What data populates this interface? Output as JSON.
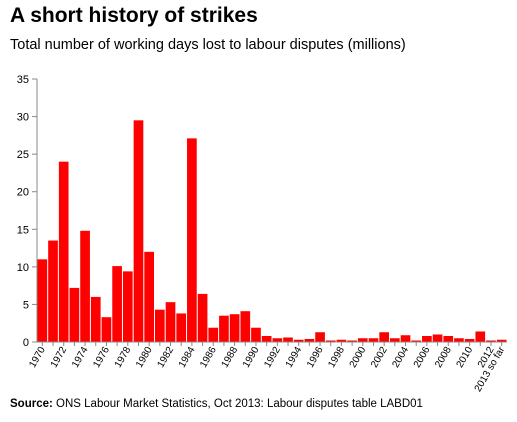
{
  "title": "A short history of strikes",
  "subtitle": "Total number of working days lost to labour disputes (millions)",
  "source": {
    "label": "Source:",
    "text": "ONS Labour Market Statistics, Oct 2013: Labour disputes table LABD01"
  },
  "colors": {
    "bar": "#ff0000",
    "axis": "#888888"
  },
  "chart_data": {
    "type": "bar",
    "title": "A short history of strikes",
    "ylabel": "",
    "xlabel": "",
    "ylim": [
      0,
      35
    ],
    "yticks": [
      0,
      5,
      10,
      15,
      20,
      25,
      30,
      35
    ],
    "grid": false,
    "categories": [
      "1970",
      "1971",
      "1972",
      "1973",
      "1974",
      "1975",
      "1976",
      "1977",
      "1978",
      "1979",
      "1980",
      "1981",
      "1982",
      "1983",
      "1984",
      "1985",
      "1986",
      "1987",
      "1988",
      "1989",
      "1990",
      "1991",
      "1992",
      "1993",
      "1994",
      "1995",
      "1996",
      "1997",
      "1998",
      "1999",
      "2000",
      "2001",
      "2002",
      "2003",
      "2004",
      "2005",
      "2006",
      "2007",
      "2008",
      "2009",
      "2010",
      "2011",
      "2012",
      "2013 so far"
    ],
    "tick_labels": [
      "1970",
      "",
      "1972",
      "",
      "1974",
      "",
      "1976",
      "",
      "1978",
      "",
      "1980",
      "",
      "1982",
      "",
      "1984",
      "",
      "1986",
      "",
      "1988",
      "",
      "1990",
      "",
      "1992",
      "",
      "1994",
      "",
      "1996",
      "",
      "1998",
      "",
      "2000",
      "",
      "2002",
      "",
      "2004",
      "",
      "2006",
      "",
      "2008",
      "",
      "2010",
      "",
      "2012",
      "2013 so far"
    ],
    "values": [
      11.0,
      13.5,
      24.0,
      7.2,
      14.8,
      6.0,
      3.3,
      10.1,
      9.4,
      29.5,
      12.0,
      4.3,
      5.3,
      3.8,
      27.1,
      6.4,
      1.9,
      3.5,
      3.7,
      4.1,
      1.9,
      0.8,
      0.5,
      0.6,
      0.3,
      0.4,
      1.3,
      0.2,
      0.3,
      0.2,
      0.5,
      0.5,
      1.3,
      0.5,
      0.9,
      0.2,
      0.8,
      1.0,
      0.8,
      0.5,
      0.4,
      1.4,
      0.2,
      0.3
    ]
  }
}
